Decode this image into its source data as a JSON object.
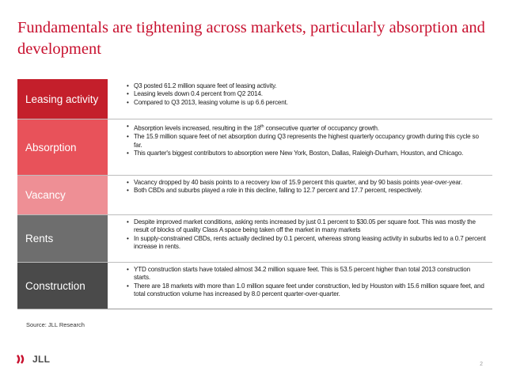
{
  "title": "Fundamentals are tightening across markets, particularly absorption and development",
  "colors": {
    "title": "#c8102e",
    "leasing": "#c41f2b",
    "absorption": "#e8525a",
    "vacancy": "#ee8f95",
    "rents": "#6e6e6e",
    "construction": "#4a4a4a"
  },
  "rows": [
    {
      "label": "Leasing activity",
      "bullets": [
        "Q3 posted 61.2 million square feet of leasing activity.",
        "Leasing levels down 0.4 percent from Q2 2014.",
        "Compared to Q3 2013, leasing volume is up 6.6 percent."
      ]
    },
    {
      "label": "Absorption",
      "bullets": [
        "Absorption levels increased, resulting in the 18th consecutive quarter of occupancy growth.",
        "The 15.9 million square feet of net absorption during Q3 represents the highest quarterly occupancy growth during this cycle so far.",
        "This quarter's biggest contributors to absorption were New York, Boston, Dallas, Raleigh-Durham, Houston, and Chicago."
      ]
    },
    {
      "label": "Vacancy",
      "bullets": [
        "Vacancy dropped by 40 basis points to a recovery low of 15.9 percent this quarter, and by 90 basis points year-over-year.",
        "Both CBDs and suburbs played a role in this decline, falling to 12.7 percent and 17.7 percent, respectively."
      ]
    },
    {
      "label": "Rents",
      "bullets": [
        "Despite improved market conditions, asking rents increased by just 0.1 percent to $30.05 per square foot. This was mostly the result of blocks of quality Class A space being taken off the market in many markets",
        "In supply-constrained CBDs, rents actually declined by 0.1 percent, whereas strong leasing activity in suburbs led to a 0.7 percent increase in rents."
      ]
    },
    {
      "label": "Construction",
      "bullets": [
        "YTD construction starts have totaled almost 34.2 million square feet. This is 53.5 percent higher than total 2013 construction starts.",
        "There are 18 markets with more than 1.0 million square feet under construction, led by Houston with 15.6 million square feet, and total construction volume has increased by 8.0 percent quarter-over-quarter."
      ]
    }
  ],
  "source": "Source: JLL Research",
  "logo": {
    "text": "JLL",
    "icon": "jll-logo-icon"
  },
  "page_number": "2"
}
